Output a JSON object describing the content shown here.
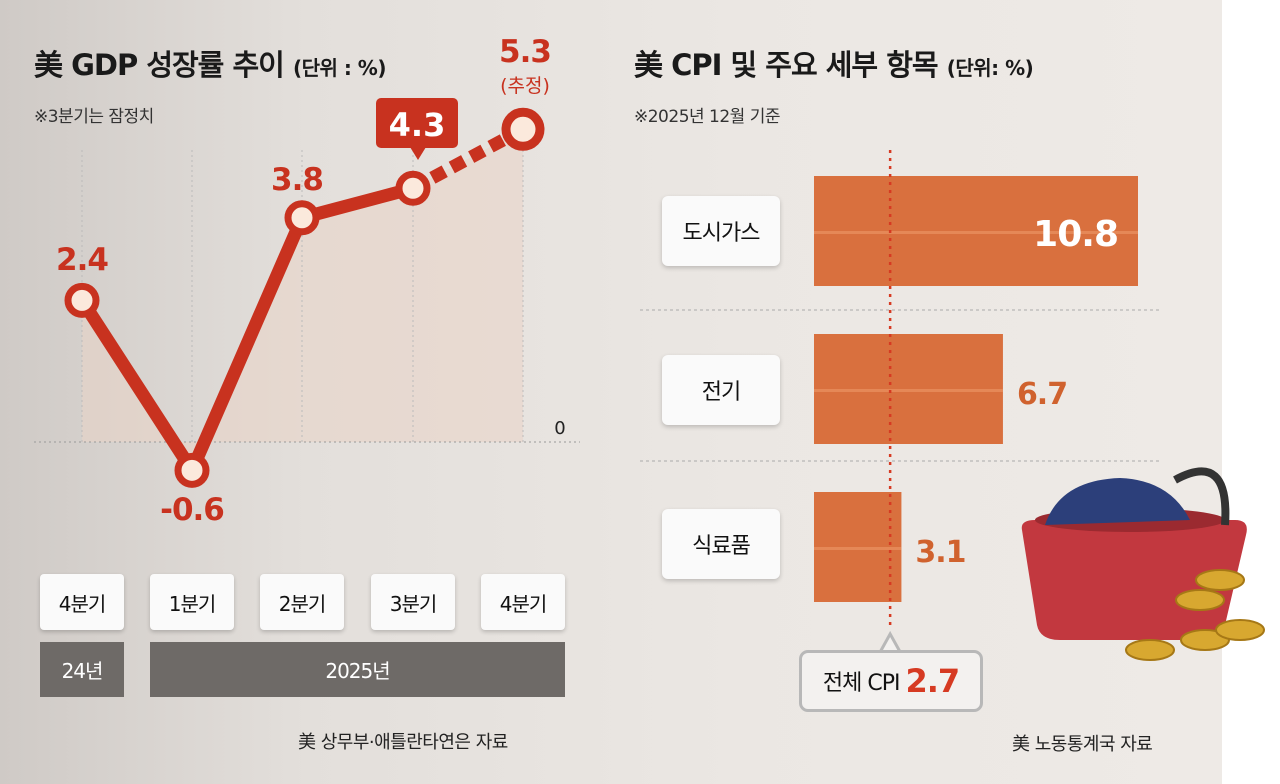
{
  "left": {
    "title": "美 GDP 성장률 추이",
    "unit": "(단위 : %)",
    "note": "※3분기는 잠정치",
    "source": "美 상무부·애틀란타연은 자료",
    "years": [
      "24년",
      "2025년"
    ]
  },
  "right": {
    "title": "美 CPI 및 주요 세부 항목",
    "unit": "(단위: %)",
    "note": "※2025년 12월 기준",
    "source": "美 노동통계국 자료",
    "total_label": "전체 CPI",
    "total_value": "2.7"
  },
  "chart_data": [
    {
      "type": "line",
      "categories": [
        "4분기",
        "1분기",
        "2분기",
        "3분기",
        "4분기"
      ],
      "values": [
        2.4,
        -0.6,
        3.8,
        4.3,
        5.3
      ],
      "labels": [
        "2.4",
        "-0.6",
        "3.8",
        "4.3",
        "5.3"
      ],
      "estimate_label": "(추정)",
      "zero_label": "0",
      "color": "#c8321f"
    },
    {
      "type": "bar",
      "orientation": "horizontal",
      "categories": [
        "도시가스",
        "전기",
        "식료품"
      ],
      "values": [
        10.8,
        6.7,
        3.1
      ],
      "labels": [
        "10.8",
        "6.7",
        "3.1"
      ],
      "reference_value": 2.7,
      "color": "#d9703e"
    }
  ]
}
